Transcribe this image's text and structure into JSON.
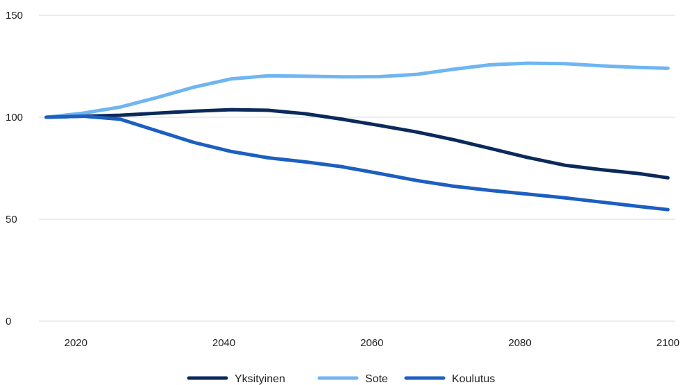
{
  "chart_data": {
    "type": "line",
    "title": "",
    "xlabel": "",
    "ylabel": "",
    "xlim": [
      2015,
      2101
    ],
    "ylim": [
      0,
      150
    ],
    "x_ticks": [
      2020,
      2040,
      2060,
      2080,
      2100
    ],
    "y_ticks": [
      0,
      50,
      100,
      150
    ],
    "grid": true,
    "legend_position": "bottom",
    "series": [
      {
        "name": "Yksityinen",
        "color": "#0b2a5b",
        "points": [
          [
            2016,
            100
          ],
          [
            2021,
            100.5
          ],
          [
            2026,
            101
          ],
          [
            2031,
            102
          ],
          [
            2036,
            103
          ],
          [
            2041,
            103.7
          ],
          [
            2046,
            103.4
          ],
          [
            2051,
            101.7
          ],
          [
            2056,
            99
          ],
          [
            2061,
            96
          ],
          [
            2066,
            92.8
          ],
          [
            2071,
            89
          ],
          [
            2076,
            84.7
          ],
          [
            2081,
            80.3
          ],
          [
            2086,
            76.5
          ],
          [
            2091,
            74.3
          ],
          [
            2096,
            72.4
          ],
          [
            2100,
            70.3
          ]
        ]
      },
      {
        "name": "Sote",
        "color": "#6fb5f2",
        "points": [
          [
            2016,
            100
          ],
          [
            2021,
            102
          ],
          [
            2026,
            105
          ],
          [
            2031,
            109.7
          ],
          [
            2036,
            114.8
          ],
          [
            2041,
            118.8
          ],
          [
            2046,
            120.3
          ],
          [
            2051,
            120.1
          ],
          [
            2056,
            119.8
          ],
          [
            2061,
            119.9
          ],
          [
            2066,
            121
          ],
          [
            2071,
            123.5
          ],
          [
            2076,
            125.7
          ],
          [
            2081,
            126.5
          ],
          [
            2086,
            126.3
          ],
          [
            2091,
            125.2
          ],
          [
            2096,
            124.4
          ],
          [
            2100,
            124
          ]
        ]
      },
      {
        "name": "Koulutus",
        "color": "#1c5fc0",
        "points": [
          [
            2016,
            100
          ],
          [
            2021,
            100.5
          ],
          [
            2026,
            99
          ],
          [
            2031,
            93.3
          ],
          [
            2036,
            87.6
          ],
          [
            2041,
            83.2
          ],
          [
            2046,
            80.1
          ],
          [
            2051,
            78.1
          ],
          [
            2056,
            75.7
          ],
          [
            2061,
            72.4
          ],
          [
            2066,
            69
          ],
          [
            2071,
            66.2
          ],
          [
            2076,
            64.1
          ],
          [
            2081,
            62.3
          ],
          [
            2086,
            60.5
          ],
          [
            2091,
            58.4
          ],
          [
            2096,
            56.3
          ],
          [
            2100,
            54.7
          ]
        ]
      }
    ]
  }
}
